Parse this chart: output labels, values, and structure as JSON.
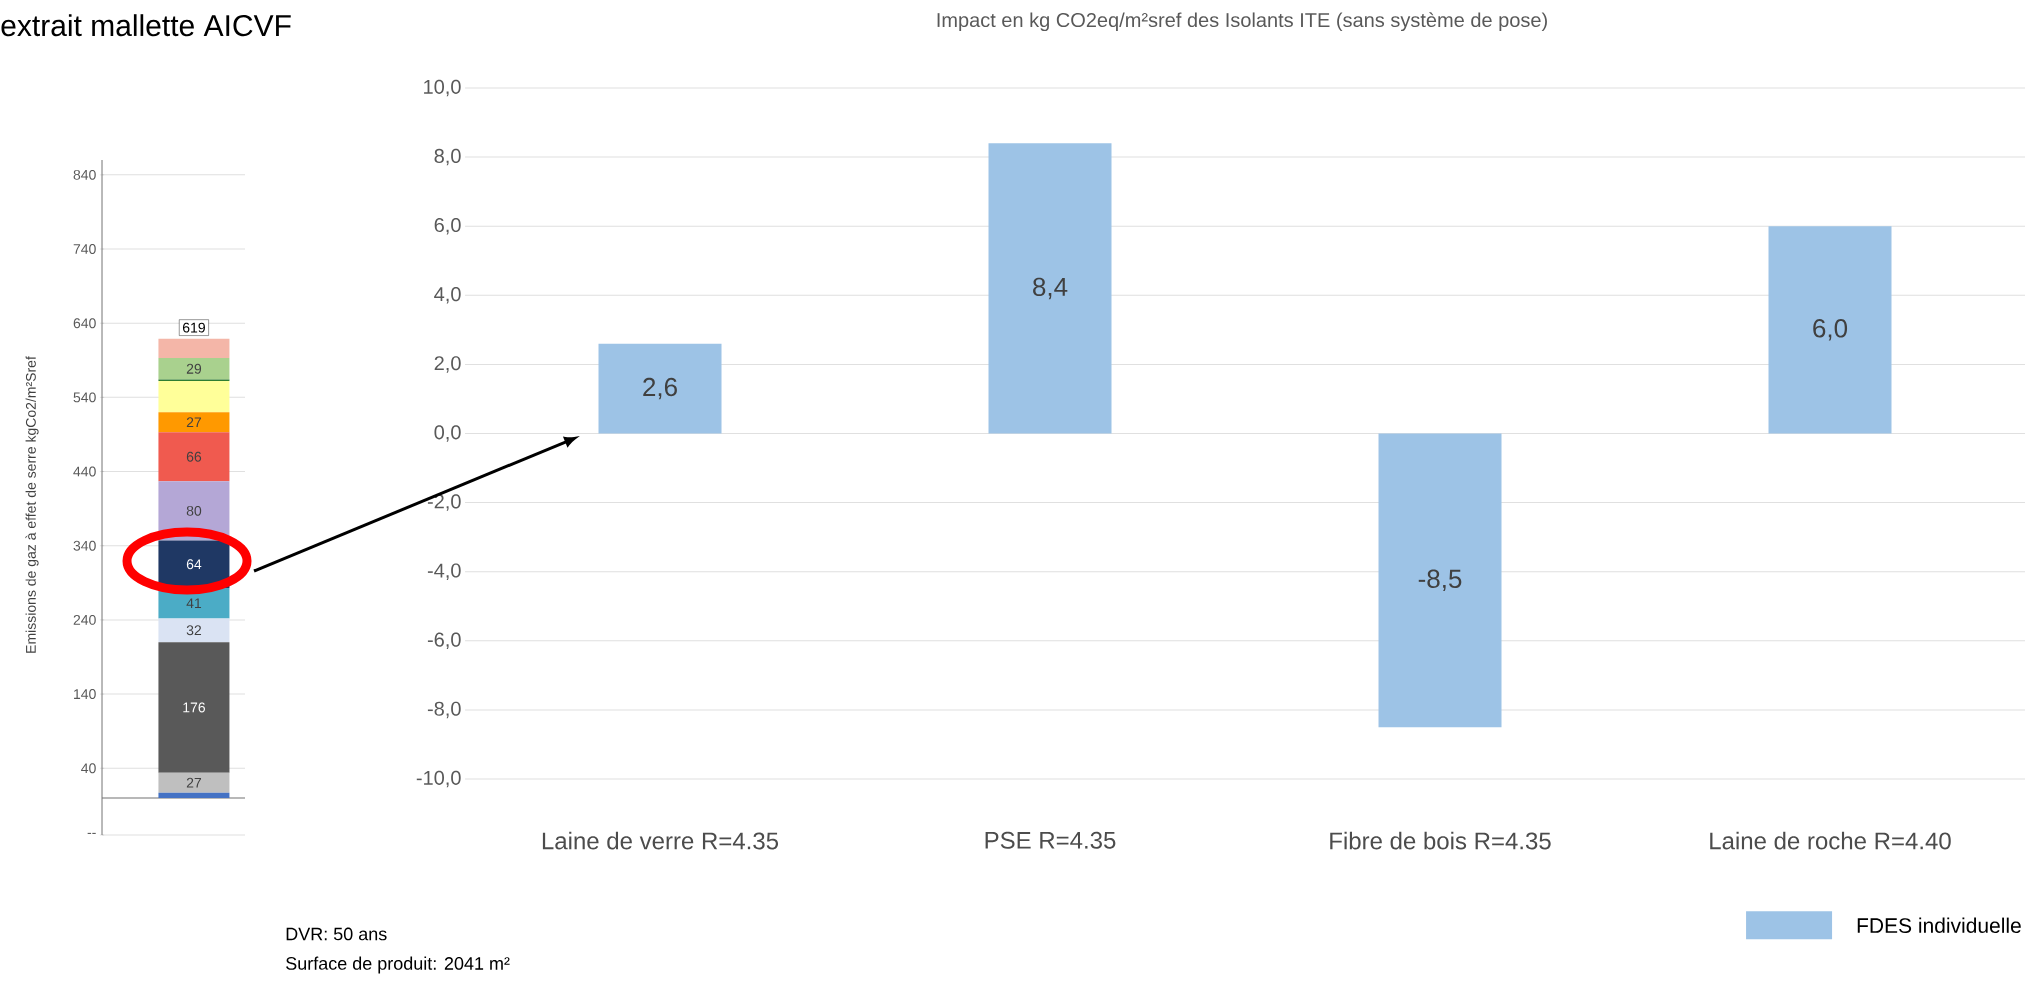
{
  "chart_data": [
    {
      "type": "bar",
      "title": "extrait mallette AICVF",
      "ylabel": "Emissions de gaz à effet de serre kgCo2/m²Sref",
      "stacked": true,
      "categories": [
        null
      ],
      "series": [
        {
          "color": "#4472c4",
          "values": [
            7
          ],
          "value_labels": [
            null
          ]
        },
        {
          "color": "#bfbfbf",
          "values": [
            27
          ],
          "value_labels": [
            "27"
          ]
        },
        {
          "color": "#595959",
          "values": [
            176
          ],
          "value_labels": [
            "176"
          ]
        },
        {
          "color": "#dae3f3",
          "values": [
            32
          ],
          "value_labels": [
            "32"
          ]
        },
        {
          "color": "#4bacc6",
          "values": [
            41
          ],
          "value_labels": [
            "41"
          ]
        },
        {
          "color": "#1f3864",
          "values": [
            64
          ],
          "value_labels": [
            "64"
          ]
        },
        {
          "color": "#b4a7d6",
          "values": [
            80
          ],
          "value_labels": [
            "80"
          ]
        },
        {
          "color": "#f05a4f",
          "values": [
            66
          ],
          "value_labels": [
            "66"
          ]
        },
        {
          "color": "#ff9900",
          "values": [
            27
          ],
          "value_labels": [
            "27"
          ]
        },
        {
          "color": "#ffff99",
          "values": [
            42
          ],
          "value_labels": [
            null
          ]
        },
        {
          "color": "#2e7d32",
          "values": [
            2
          ],
          "value_labels": [
            null
          ]
        },
        {
          "color": "#a9d18e",
          "values": [
            29
          ],
          "value_labels": [
            "29"
          ]
        },
        {
          "color": "#f4b6a8",
          "values": [
            26
          ],
          "value_labels": [
            null
          ]
        }
      ],
      "totals": [
        "619"
      ],
      "ylim": [
        -50,
        860
      ],
      "yticks": [
        {
          "value": -50,
          "label": "--"
        },
        40,
        140,
        240,
        340,
        440,
        540,
        640,
        740,
        840
      ],
      "grid": "y"
    },
    {
      "type": "bar",
      "title": "Impact en kg CO2eq/m²sref des Isolants ITE (sans système de pose)",
      "categories": [
        "Laine de verre R=4.35",
        "PSE  R=4.35",
        "Fibre de bois  R=4.35",
        "Laine de roche  R=4.40"
      ],
      "series": [
        {
          "name": "FDES individuelle",
          "color": "#9dc3e6",
          "values": [
            2.6,
            8.4,
            -8.5,
            6.0
          ],
          "value_labels": [
            "2,6",
            "8,4",
            "-8,5",
            "6,0"
          ]
        }
      ],
      "ylim": [
        -10,
        10
      ],
      "yticks": [
        {
          "value": -10,
          "label": "-10,0"
        },
        {
          "value": -8,
          "label": "-8,0"
        },
        {
          "value": -6,
          "label": "-6,0"
        },
        {
          "value": -4,
          "label": "-4,0"
        },
        {
          "value": -2,
          "label": "-2,0"
        },
        {
          "value": 0,
          "label": "0,0"
        },
        {
          "value": 2,
          "label": "2,0"
        },
        {
          "value": 4,
          "label": "4,0"
        },
        {
          "value": 6,
          "label": "6,0"
        },
        {
          "value": 8,
          "label": "8,0"
        },
        {
          "value": 10,
          "label": "10,0"
        }
      ],
      "grid": "y",
      "legend": "bottom right",
      "annotations": [
        "DVR: 50 ans",
        "Surface de produit: 2041 m²"
      ]
    }
  ]
}
